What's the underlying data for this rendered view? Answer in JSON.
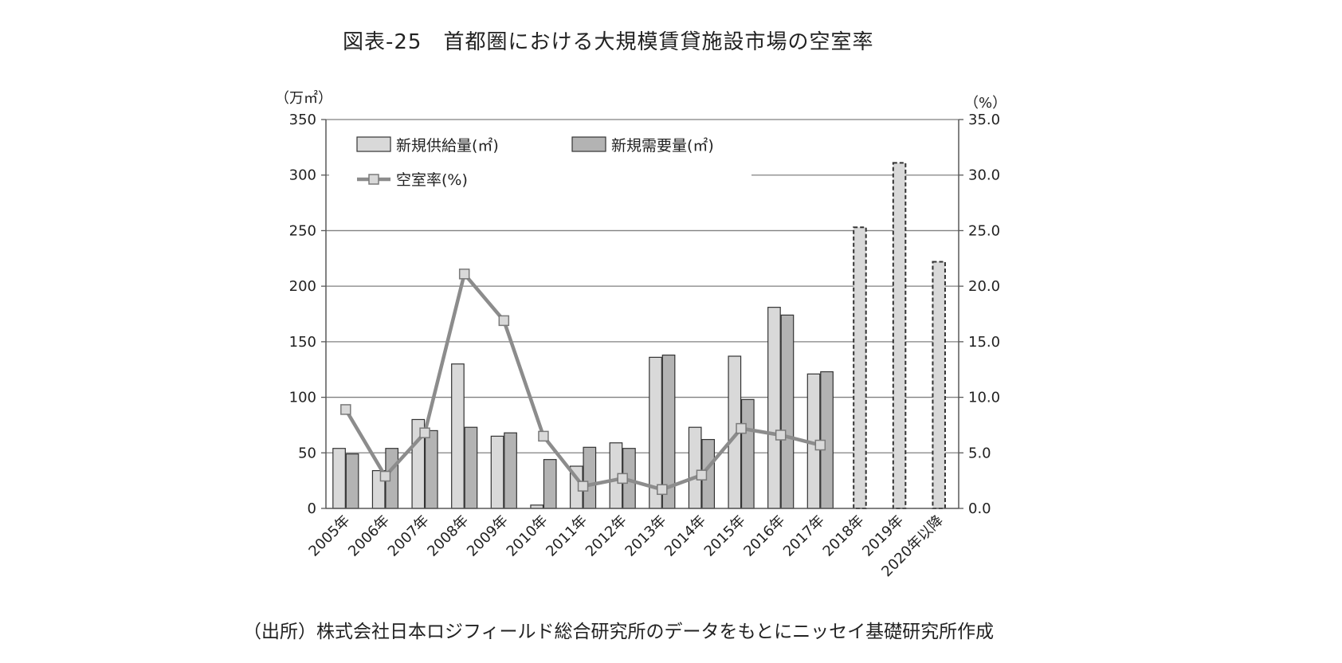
{
  "title": "図表-25　首都圏における大規模賃貸施設市場の空室率",
  "source_note": "（出所）株式会社日本ロジフィールド総合研究所のデータをもとにニッセイ基礎研究所作成",
  "colors": {
    "supply": "#d9d9d9",
    "demand": "#b3b3b3",
    "vacancy_line": "#8c8c8c",
    "vacancy_marker_fill": "#d9d9d9",
    "axis": "#595959",
    "grid": "#808080"
  },
  "chart_data": {
    "type": "bar",
    "categories": [
      "2005年",
      "2006年",
      "2007年",
      "2008年",
      "2009年",
      "2010年",
      "2011年",
      "2012年",
      "2013年",
      "2014年",
      "2015年",
      "2016年",
      "2017年",
      "2018年",
      "2019年",
      "2020年以降"
    ],
    "left_axis": {
      "unit_label": "（万㎡）",
      "ylim": [
        0,
        350
      ],
      "ticks": [
        "0",
        "50",
        "100",
        "150",
        "200",
        "250",
        "300",
        "350"
      ]
    },
    "right_axis": {
      "unit_label": "（%）",
      "ylim": [
        0,
        35
      ],
      "ticks": [
        "0.0",
        "5.0",
        "10.0",
        "15.0",
        "20.0",
        "25.0",
        "30.0",
        "35.0"
      ]
    },
    "series": [
      {
        "name": "新規供給量(㎡)",
        "type": "bar",
        "axis": "left",
        "values": [
          54,
          34,
          80,
          130,
          65,
          3,
          38,
          59,
          136,
          73,
          137,
          181,
          121,
          253,
          311,
          222
        ],
        "dashed_from_index": 13
      },
      {
        "name": "新規需要量(㎡)",
        "type": "bar",
        "axis": "left",
        "values": [
          49,
          54,
          70,
          73,
          68,
          44,
          55,
          54,
          138,
          62,
          98,
          174,
          123,
          null,
          null,
          null
        ]
      },
      {
        "name": "空室率(%)",
        "type": "line",
        "axis": "right",
        "values": [
          8.9,
          2.9,
          6.8,
          21.1,
          16.9,
          6.5,
          2.0,
          2.7,
          1.7,
          3.0,
          7.2,
          6.6,
          5.7,
          null,
          null,
          null
        ]
      }
    ],
    "grid": true,
    "legend": "top-left inside plot"
  }
}
